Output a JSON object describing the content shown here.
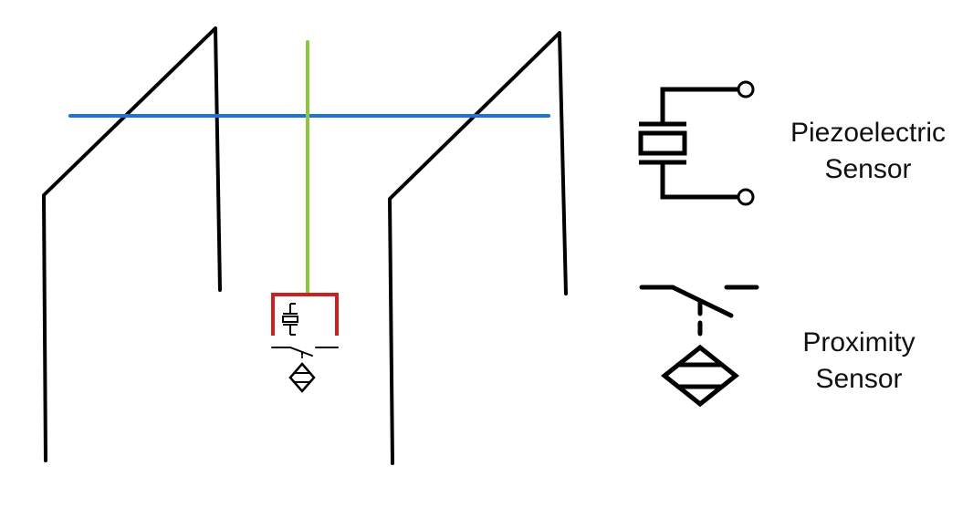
{
  "legend": {
    "piezo": {
      "line1": "Piezoelectric",
      "line2": "Sensor",
      "icon": "piezoelectric-sensor-symbol"
    },
    "proximity": {
      "line1": "Proximity",
      "line2": "Sensor",
      "icon": "proximity-sensor-symbol"
    }
  },
  "colors": {
    "frame": "#000000",
    "crossbar": "#1e73d8",
    "rod": "#8cc63f",
    "wiring": "#cc1f1f",
    "symbol": "#000000"
  }
}
